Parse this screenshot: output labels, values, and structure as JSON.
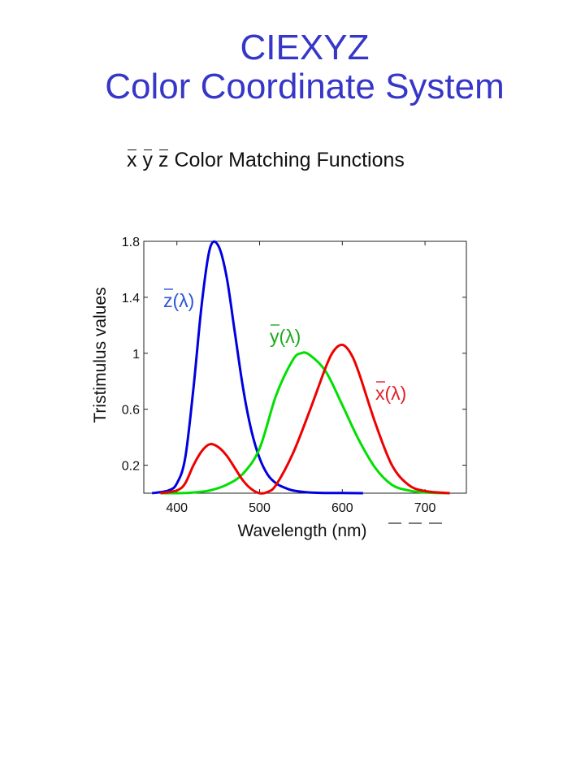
{
  "title_line1": "CIEXYZ",
  "title_line2": "Color Coordinate System",
  "subtitle": {
    "symbols": [
      "x",
      "y",
      "z"
    ],
    "text": "Color Matching Functions"
  },
  "chart_data": {
    "type": "line",
    "xlabel": "Wavelength (nm)",
    "ylabel": "Tristimulus values",
    "xlim": [
      360,
      750
    ],
    "ylim": [
      0,
      1.8
    ],
    "xticks": [
      400,
      500,
      600,
      700
    ],
    "yticks": [
      0.2,
      0.6,
      1,
      1.4,
      1.8
    ],
    "ytick_labels": [
      "0.2",
      "0.6",
      "1",
      "1.4",
      "1.8"
    ],
    "grid": false,
    "series": [
      {
        "name": "z(λ)",
        "color": "#0000e0",
        "label_color": "#2b55d9",
        "x": [
          370,
          390,
          400,
          410,
          420,
          430,
          440,
          450,
          460,
          470,
          480,
          490,
          500,
          510,
          520,
          530,
          540,
          560,
          580,
          600,
          625
        ],
        "y": [
          0.0,
          0.02,
          0.07,
          0.25,
          0.75,
          1.35,
          1.75,
          1.77,
          1.55,
          1.15,
          0.75,
          0.45,
          0.25,
          0.13,
          0.07,
          0.04,
          0.02,
          0.005,
          0.002,
          0.001,
          0.0
        ]
      },
      {
        "name": "y(λ)",
        "color": "#00e000",
        "label_color": "#1aaa1a",
        "x": [
          380,
          400,
          420,
          440,
          460,
          480,
          500,
          520,
          540,
          550,
          560,
          580,
          600,
          620,
          640,
          660,
          680,
          700,
          730
        ],
        "y": [
          0.0,
          0.0,
          0.005,
          0.02,
          0.06,
          0.14,
          0.32,
          0.7,
          0.95,
          1.0,
          0.99,
          0.87,
          0.63,
          0.38,
          0.18,
          0.06,
          0.02,
          0.005,
          0.0
        ]
      },
      {
        "name": "x(λ)",
        "color": "#ee0000",
        "label_color": "#e0202a",
        "x": [
          380,
          400,
          410,
          420,
          430,
          440,
          450,
          460,
          470,
          480,
          490,
          500,
          510,
          520,
          540,
          560,
          580,
          590,
          600,
          610,
          620,
          640,
          660,
          680,
          700,
          730
        ],
        "y": [
          0.0,
          0.02,
          0.07,
          0.2,
          0.3,
          0.35,
          0.33,
          0.27,
          0.18,
          0.09,
          0.03,
          0.0,
          0.01,
          0.06,
          0.28,
          0.58,
          0.9,
          1.02,
          1.06,
          1.0,
          0.86,
          0.5,
          0.2,
          0.06,
          0.015,
          0.0
        ]
      }
    ]
  }
}
